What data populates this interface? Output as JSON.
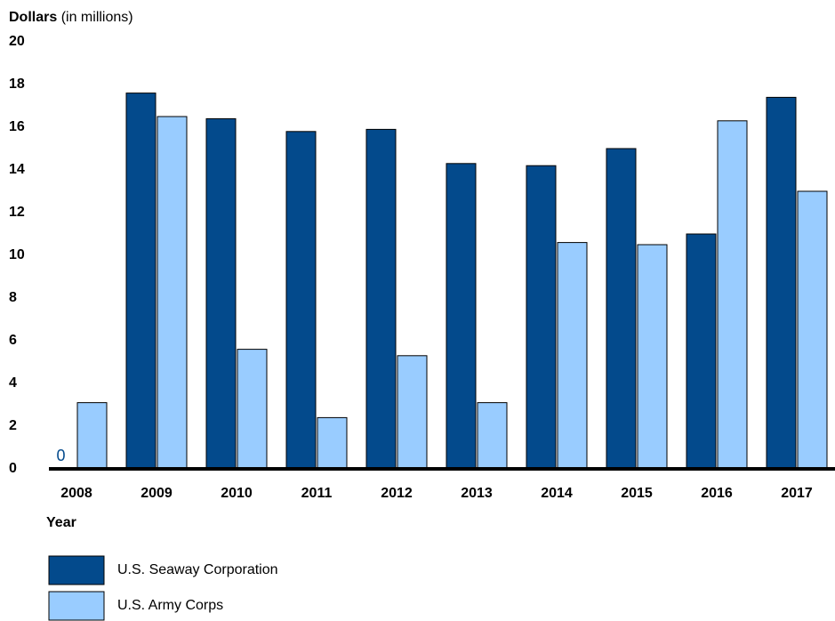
{
  "chart_data": {
    "type": "bar",
    "y_label": "Dollars",
    "y_label_note": "(in millions)",
    "x_label": "Year",
    "categories": [
      "2008",
      "2009",
      "2010",
      "2011",
      "2012",
      "2013",
      "2014",
      "2015",
      "2016",
      "2017"
    ],
    "series": [
      {
        "name": "U.S. Seaway Corporation",
        "color": "#034a8c",
        "values": [
          0,
          17.6,
          16.4,
          15.8,
          15.9,
          14.3,
          14.2,
          15.0,
          11.0,
          17.4
        ]
      },
      {
        "name": "U.S. Army Corps",
        "color": "#99ccff",
        "values": [
          3.1,
          16.5,
          5.6,
          2.4,
          5.3,
          3.1,
          10.6,
          10.5,
          16.3,
          13.0
        ]
      }
    ],
    "ylim": [
      0,
      20
    ],
    "yticks": [
      0,
      2,
      4,
      6,
      8,
      10,
      12,
      14,
      16,
      18,
      20
    ],
    "grid": false
  }
}
